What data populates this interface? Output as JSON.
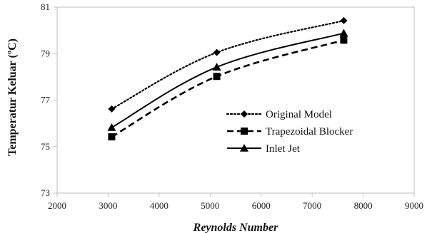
{
  "chart_data": {
    "type": "line",
    "title": "",
    "xlabel": "Reynolds Number",
    "ylabel": "Temperatur Keluar (ºC)",
    "xlim": [
      2000,
      9000
    ],
    "ylim": [
      73,
      81
    ],
    "xticks": [
      2000,
      3000,
      4000,
      5000,
      6000,
      7000,
      8000,
      9000
    ],
    "yticks": [
      73,
      75,
      77,
      79,
      81
    ],
    "x_tick_labels": [
      "2000",
      "3000",
      "4000",
      "5000",
      "6000",
      "7000",
      "8000",
      "9000"
    ],
    "y_tick_labels": [
      "73",
      "75",
      "77",
      "79",
      "81"
    ],
    "grid": false,
    "legend_position": "center-right",
    "series": [
      {
        "name": "Original Model",
        "style": "dotted",
        "marker": "diamond",
        "color": "#000000",
        "x": [
          3070,
          5130,
          7620
        ],
        "y": [
          76.62,
          79.05,
          80.42
        ]
      },
      {
        "name": "Trapezoidal Blocker",
        "style": "dashed",
        "marker": "square",
        "color": "#000000",
        "x": [
          3070,
          5130,
          7620
        ],
        "y": [
          75.42,
          78.02,
          79.58
        ]
      },
      {
        "name": "Inlet Jet",
        "style": "solid",
        "marker": "triangle",
        "color": "#000000",
        "x": [
          3070,
          5130,
          7620
        ],
        "y": [
          75.82,
          78.42,
          79.88
        ]
      }
    ]
  }
}
